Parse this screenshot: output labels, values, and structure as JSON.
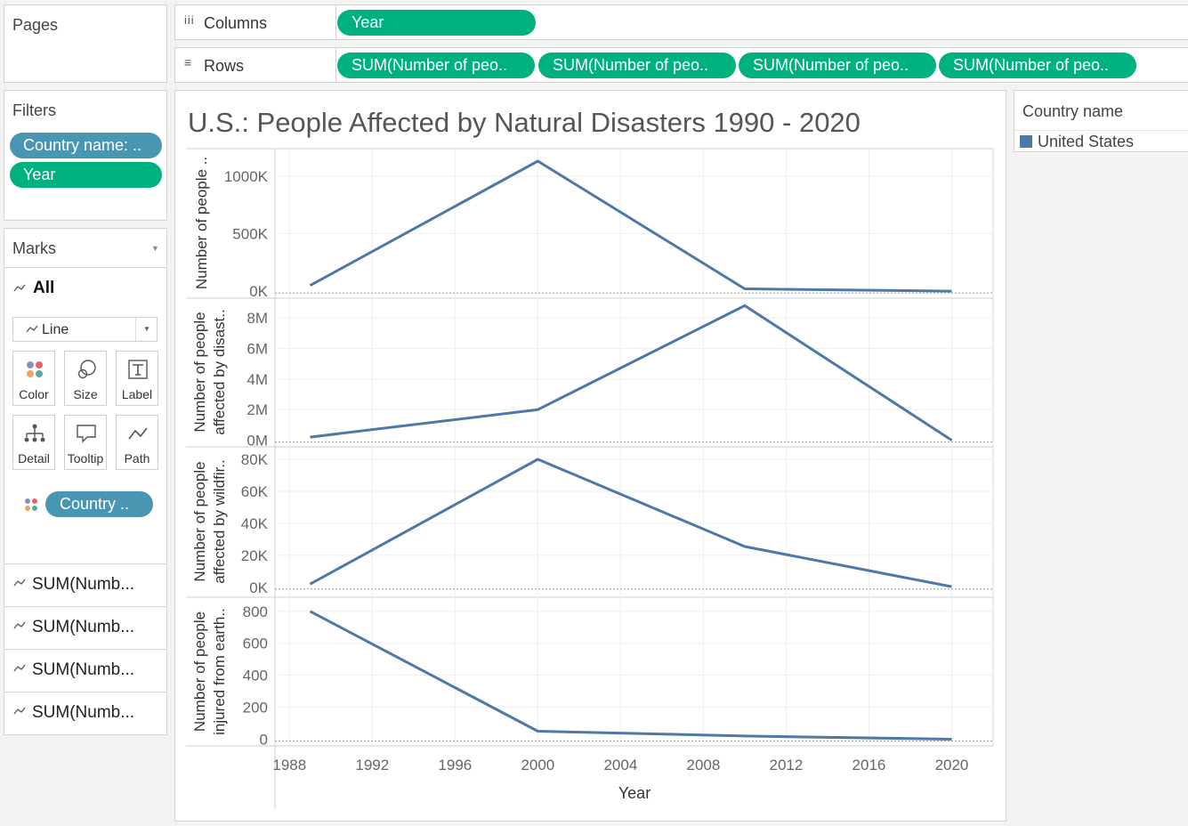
{
  "pages_panel": {
    "title": "Pages"
  },
  "shelves": {
    "columns_label": "Columns",
    "columns_pill": "Year",
    "rows_label": "Rows",
    "rows_pills": [
      "SUM(Number of peo..",
      "SUM(Number of peo..",
      "SUM(Number of peo..",
      "SUM(Number of peo.."
    ]
  },
  "filters": {
    "title": "Filters",
    "pills": [
      "Country name: ..",
      "Year"
    ]
  },
  "marks": {
    "title": "Marks",
    "all_label": "All",
    "mark_type": "Line",
    "buttons": [
      "Color",
      "Size",
      "Label",
      "Detail",
      "Tooltip",
      "Path"
    ],
    "color_pill": "Country ..",
    "measure_rows": [
      "SUM(Numb...",
      "SUM(Numb...",
      "SUM(Numb...",
      "SUM(Numb..."
    ]
  },
  "legend": {
    "title": "Country name",
    "items": [
      {
        "label": "United States",
        "color": "#4e79a7"
      }
    ]
  },
  "chart_data": {
    "type": "line",
    "title": "U.S.: People Affected by Natural Disasters 1990 - 2020",
    "xlabel": "Year",
    "x": [
      1989,
      2000,
      2010,
      2020
    ],
    "xlim": [
      1987.3,
      2022
    ],
    "xticks": [
      "1988",
      "1992",
      "1996",
      "2000",
      "2004",
      "2008",
      "2012",
      "2016",
      "2020"
    ],
    "line_color": "#4e79a7",
    "panes": [
      {
        "ylabel": "Number of people ..",
        "yticks": [
          "1000K",
          "500K",
          "0K"
        ],
        "tick_values": [
          1000000,
          500000,
          0
        ],
        "ylim": [
          -30000,
          1200000
        ],
        "values": [
          50000,
          1130000,
          20000,
          0
        ]
      },
      {
        "ylabel": "Number of people affected by disast..",
        "yticks": [
          "8M",
          "6M",
          "4M",
          "2M",
          "0M"
        ],
        "tick_values": [
          8000000,
          6000000,
          4000000,
          2000000,
          0
        ],
        "ylim": [
          -200000,
          9000000
        ],
        "values": [
          200000,
          2000000,
          8800000,
          0
        ]
      },
      {
        "ylabel": "Number of people affected by wildfir..",
        "yticks": [
          "80K",
          "60K",
          "40K",
          "20K",
          "0K"
        ],
        "tick_values": [
          80000,
          60000,
          40000,
          20000,
          0
        ],
        "ylim": [
          -4000,
          85000
        ],
        "values": [
          2000,
          80000,
          25500,
          400
        ]
      },
      {
        "ylabel": "Number of people injured from earth..",
        "yticks": [
          "800",
          "600",
          "400",
          "200",
          "0"
        ],
        "tick_values": [
          800,
          600,
          400,
          200,
          0
        ],
        "ylim": [
          -25,
          860
        ],
        "values": [
          800,
          50,
          20,
          0
        ]
      }
    ]
  }
}
